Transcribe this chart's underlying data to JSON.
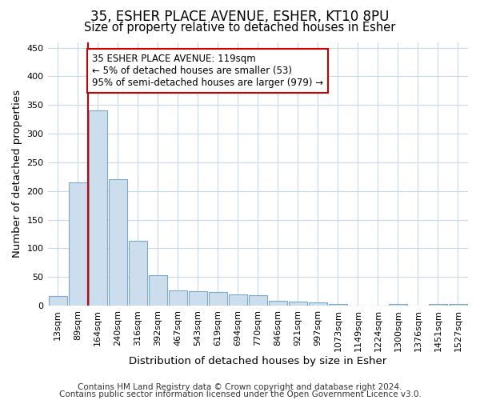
{
  "title1": "35, ESHER PLACE AVENUE, ESHER, KT10 8PU",
  "title2": "Size of property relative to detached houses in Esher",
  "xlabel": "Distribution of detached houses by size in Esher",
  "ylabel": "Number of detached properties",
  "categories": [
    "13sqm",
    "89sqm",
    "164sqm",
    "240sqm",
    "316sqm",
    "392sqm",
    "467sqm",
    "543sqm",
    "619sqm",
    "694sqm",
    "770sqm",
    "846sqm",
    "921sqm",
    "997sqm",
    "1073sqm",
    "1149sqm",
    "1224sqm",
    "1300sqm",
    "1376sqm",
    "1451sqm",
    "1527sqm"
  ],
  "values": [
    17,
    215,
    340,
    221,
    113,
    53,
    26,
    25,
    24,
    19,
    18,
    8,
    7,
    5,
    3,
    0,
    0,
    3,
    0,
    3,
    3
  ],
  "bar_color": "#ccdded",
  "bar_edge_color": "#7aaac8",
  "vline_x": 1.5,
  "vline_color": "#cc0000",
  "annotation_line1": "35 ESHER PLACE AVENUE: 119sqm",
  "annotation_line2": "← 5% of detached houses are smaller (53)",
  "annotation_line3": "95% of semi-detached houses are larger (979) →",
  "annotation_box_color": "white",
  "annotation_box_edge": "#cc0000",
  "ylim": [
    0,
    460
  ],
  "yticks": [
    0,
    50,
    100,
    150,
    200,
    250,
    300,
    350,
    400,
    450
  ],
  "footer1": "Contains HM Land Registry data © Crown copyright and database right 2024.",
  "footer2": "Contains public sector information licensed under the Open Government Licence v3.0.",
  "bg_color": "#ffffff",
  "plot_bg_color": "#ffffff",
  "grid_color": "#c8d8e8",
  "title1_fontsize": 12,
  "title2_fontsize": 10.5,
  "label_fontsize": 9.5,
  "tick_fontsize": 8,
  "annot_fontsize": 8.5,
  "footer_fontsize": 7.5
}
